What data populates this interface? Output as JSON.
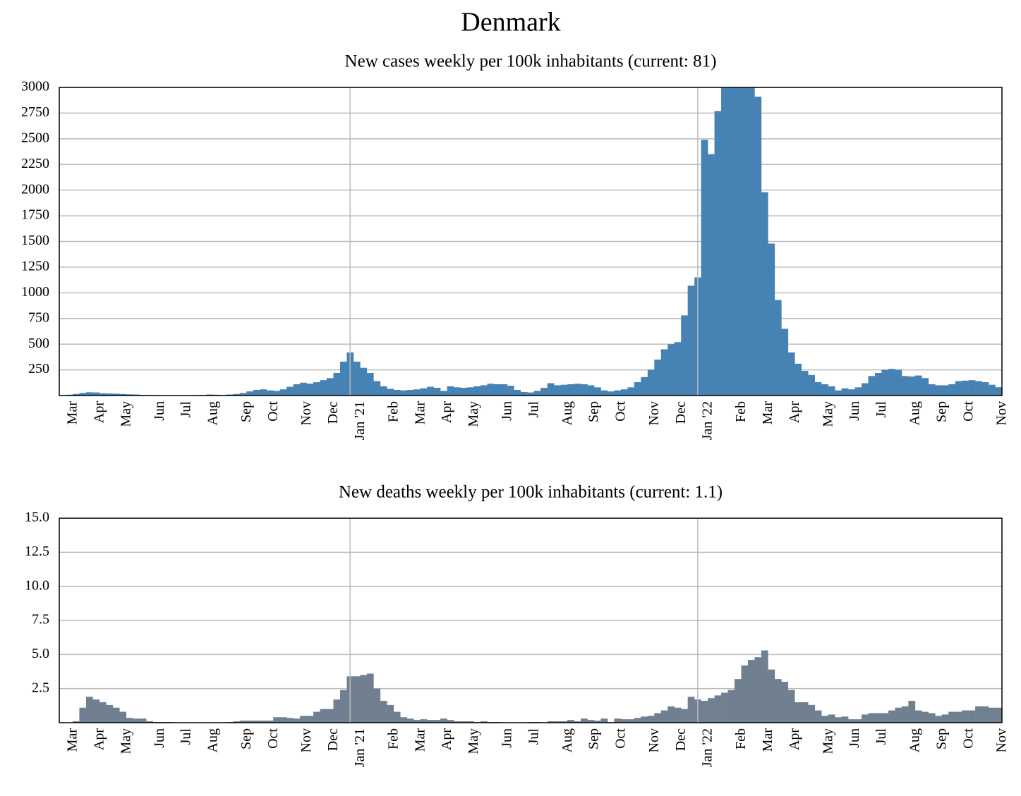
{
  "title": "Denmark",
  "chart_data": [
    {
      "type": "bar",
      "title": "New cases weekly per 100k inhabitants (current: 81)",
      "color": "#4682b4",
      "grid": true,
      "ylim": [
        0,
        3000
      ],
      "yticks": [
        250,
        500,
        750,
        1000,
        1250,
        1500,
        1750,
        2000,
        2250,
        2500,
        2750,
        3000
      ],
      "categories": [
        "Mar",
        null,
        null,
        null,
        "Apr",
        null,
        null,
        null,
        "May",
        null,
        null,
        null,
        null,
        "Jun",
        null,
        null,
        null,
        "Jul",
        null,
        null,
        null,
        "Aug",
        null,
        null,
        null,
        null,
        "Sep",
        null,
        null,
        null,
        "Oct",
        null,
        null,
        null,
        null,
        "Nov",
        null,
        null,
        null,
        "Dec",
        null,
        null,
        null,
        "Jan '21",
        null,
        null,
        null,
        null,
        "Feb",
        null,
        null,
        null,
        "Mar",
        null,
        null,
        null,
        "Apr",
        null,
        null,
        null,
        "May",
        null,
        null,
        null,
        null,
        "Jun",
        null,
        null,
        null,
        "Jul",
        null,
        null,
        null,
        null,
        "Aug",
        null,
        null,
        null,
        "Sep",
        null,
        null,
        null,
        "Oct",
        null,
        null,
        null,
        null,
        "Nov",
        null,
        null,
        null,
        "Dec",
        null,
        null,
        null,
        "Jan '22",
        null,
        null,
        null,
        null,
        "Feb",
        null,
        null,
        null,
        "Mar",
        null,
        null,
        null,
        "Apr",
        null,
        null,
        null,
        null,
        "May",
        null,
        null,
        null,
        "Jun",
        null,
        null,
        null,
        "Jul",
        null,
        null,
        null,
        null,
        "Aug",
        null,
        null,
        null,
        "Sep",
        null,
        null,
        null,
        "Oct",
        null,
        null,
        null,
        null,
        "Nov",
        null
      ],
      "values": [
        2,
        8,
        15,
        25,
        32,
        30,
        22,
        20,
        18,
        15,
        12,
        10,
        6,
        5,
        4,
        3,
        3,
        3,
        3,
        3,
        4,
        6,
        10,
        8,
        6,
        10,
        15,
        25,
        40,
        55,
        60,
        50,
        45,
        60,
        85,
        110,
        125,
        115,
        130,
        150,
        170,
        220,
        330,
        420,
        330,
        270,
        220,
        140,
        90,
        65,
        55,
        50,
        55,
        60,
        70,
        85,
        75,
        45,
        90,
        80,
        75,
        80,
        90,
        100,
        115,
        110,
        110,
        95,
        55,
        35,
        30,
        45,
        75,
        120,
        100,
        105,
        110,
        115,
        110,
        100,
        80,
        50,
        40,
        50,
        60,
        80,
        130,
        180,
        250,
        350,
        450,
        500,
        520,
        780,
        1070,
        1150,
        2490,
        2350,
        2770,
        3000,
        3000,
        3000,
        3000,
        3000,
        2910,
        1980,
        1480,
        930,
        650,
        420,
        310,
        240,
        200,
        130,
        110,
        90,
        50,
        70,
        60,
        80,
        120,
        190,
        220,
        250,
        260,
        250,
        190,
        185,
        195,
        170,
        110,
        100,
        100,
        110,
        140,
        145,
        150,
        140,
        130,
        105,
        81
      ]
    },
    {
      "type": "bar",
      "title": "New deaths weekly per 100k inhabitants (current: 1.1)",
      "color": "#708090",
      "grid": true,
      "ylim": [
        0,
        15
      ],
      "yticks": [
        2.5,
        {
          "value": 5,
          "label": "5.0"
        },
        7.5,
        {
          "value": 10,
          "label": "10.0"
        },
        12.5,
        {
          "value": 15,
          "label": "15.0"
        }
      ],
      "categories": [
        "Mar",
        null,
        null,
        null,
        "Apr",
        null,
        null,
        null,
        "May",
        null,
        null,
        null,
        null,
        "Jun",
        null,
        null,
        null,
        "Jul",
        null,
        null,
        null,
        "Aug",
        null,
        null,
        null,
        null,
        "Sep",
        null,
        null,
        null,
        "Oct",
        null,
        null,
        null,
        null,
        "Nov",
        null,
        null,
        null,
        "Dec",
        null,
        null,
        null,
        "Jan '21",
        null,
        null,
        null,
        null,
        "Feb",
        null,
        null,
        null,
        "Mar",
        null,
        null,
        null,
        "Apr",
        null,
        null,
        null,
        "May",
        null,
        null,
        null,
        null,
        "Jun",
        null,
        null,
        null,
        "Jul",
        null,
        null,
        null,
        null,
        "Aug",
        null,
        null,
        null,
        "Sep",
        null,
        null,
        null,
        "Oct",
        null,
        null,
        null,
        null,
        "Nov",
        null,
        null,
        null,
        "Dec",
        null,
        null,
        null,
        "Jan '22",
        null,
        null,
        null,
        null,
        "Feb",
        null,
        null,
        null,
        "Mar",
        null,
        null,
        null,
        "Apr",
        null,
        null,
        null,
        null,
        "May",
        null,
        null,
        null,
        "Jun",
        null,
        null,
        null,
        "Jul",
        null,
        null,
        null,
        null,
        "Aug",
        null,
        null,
        null,
        "Sep",
        null,
        null,
        null,
        "Oct",
        null,
        null,
        null,
        null,
        "Nov",
        null
      ],
      "values": [
        0,
        0,
        0.1,
        1.1,
        1.9,
        1.7,
        1.5,
        1.3,
        1.1,
        0.8,
        0.35,
        0.3,
        0.3,
        0.1,
        0.05,
        0.05,
        0.05,
        0.02,
        0.02,
        0,
        0.02,
        0.02,
        0.02,
        0.02,
        0.02,
        0.05,
        0.1,
        0.15,
        0.15,
        0.15,
        0.15,
        0.15,
        0.4,
        0.4,
        0.35,
        0.3,
        0.5,
        0.5,
        0.8,
        1.0,
        1.0,
        1.7,
        2.4,
        3.4,
        3.4,
        3.5,
        3.6,
        2.5,
        1.6,
        1.3,
        0.8,
        0.4,
        0.3,
        0.2,
        0.25,
        0.2,
        0.2,
        0.3,
        0.2,
        0.1,
        0.1,
        0.1,
        0.05,
        0.1,
        0.05,
        0.05,
        0.02,
        0.02,
        0.02,
        0.02,
        0.05,
        0.05,
        0.02,
        0.1,
        0.1,
        0.1,
        0.2,
        0.1,
        0.3,
        0.2,
        0.15,
        0.3,
        0.05,
        0.3,
        0.25,
        0.25,
        0.35,
        0.45,
        0.5,
        0.7,
        0.9,
        1.2,
        1.1,
        1.0,
        1.9,
        1.7,
        1.6,
        1.8,
        2.0,
        2.2,
        2.4,
        3.2,
        4.2,
        4.6,
        4.8,
        5.3,
        3.9,
        3.2,
        3.0,
        2.4,
        1.5,
        1.5,
        1.3,
        0.9,
        0.5,
        0.6,
        0.4,
        0.45,
        0.25,
        0.25,
        0.6,
        0.7,
        0.7,
        0.7,
        0.9,
        1.1,
        1.2,
        1.6,
        0.9,
        0.8,
        0.7,
        0.5,
        0.6,
        0.8,
        0.8,
        0.9,
        0.9,
        1.2,
        1.2,
        1.1,
        1.1
      ]
    }
  ]
}
